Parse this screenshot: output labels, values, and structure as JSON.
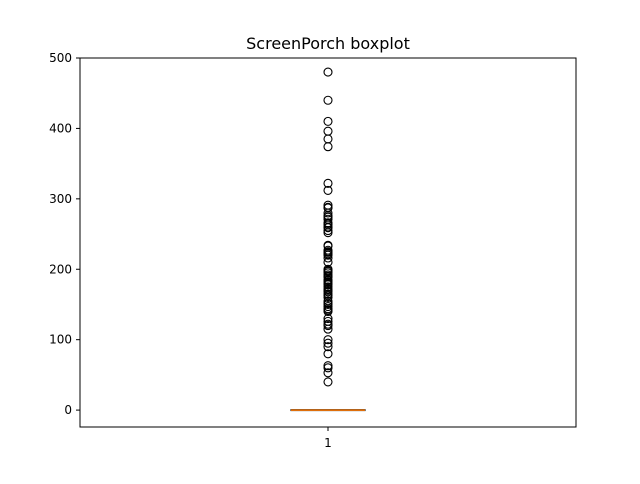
{
  "chart_data": {
    "type": "boxplot",
    "title": "ScreenPorch boxplot",
    "xlabel": "",
    "ylabel": "",
    "categories": [
      "1"
    ],
    "ylim": [
      -24,
      500
    ],
    "yticks": [
      0,
      100,
      200,
      300,
      400,
      500
    ],
    "grid": false,
    "box": {
      "q1": 0,
      "median": 0,
      "q3": 0,
      "whisker_low": 0,
      "whisker_high": 0
    },
    "outliers": [
      40,
      53,
      60,
      63,
      80,
      90,
      95,
      100,
      115,
      120,
      122,
      126,
      130,
      140,
      142,
      144,
      147,
      150,
      152,
      155,
      160,
      163,
      165,
      168,
      170,
      172,
      175,
      178,
      180,
      182,
      184,
      185,
      189,
      190,
      192,
      195,
      197,
      198,
      200,
      210,
      216,
      220,
      222,
      224,
      225,
      227,
      233,
      234,
      252,
      255,
      259,
      260,
      263,
      265,
      266,
      271,
      274,
      276,
      280,
      287,
      288,
      291,
      312,
      322,
      374,
      385,
      396,
      410,
      440,
      480
    ],
    "colors": {
      "box": "#1f77b4",
      "median": "#ff7f0e",
      "outlier_edge": "#000000"
    }
  }
}
